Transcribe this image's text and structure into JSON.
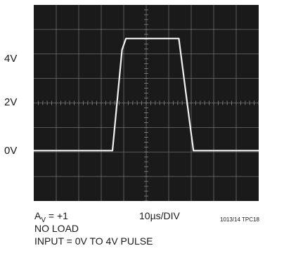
{
  "chart_data": {
    "type": "line",
    "y_tick_labels": [
      "4V",
      "2V",
      "0V"
    ],
    "y_tick_values": [
      4,
      2,
      0
    ],
    "ylim": [
      -1.8,
      5.2
    ],
    "x_divisions": 10,
    "y_divisions": 8,
    "grid": true,
    "x": [
      0,
      7,
      7.85,
      8.2,
      12.5,
      12.9,
      13.9,
      14.2,
      15.3,
      20
    ],
    "values": [
      0,
      0,
      3.6,
      4.0,
      4.0,
      4.0,
      0.9,
      0,
      0,
      0
    ],
    "x_unit": "µs",
    "y_unit": "V"
  },
  "caption": {
    "gain_main": "A",
    "gain_sub": "V",
    "gain_rest": " = +1",
    "timebase": "10µs/DIV",
    "figure_id": "1013/14 TPC18",
    "load": "NO LOAD",
    "input": "INPUT = 0V TO 4V PULSE"
  },
  "colors": {
    "screen": "#1a1a1a",
    "grid": "#8a8a8a",
    "trace": "#f2f2f2"
  }
}
